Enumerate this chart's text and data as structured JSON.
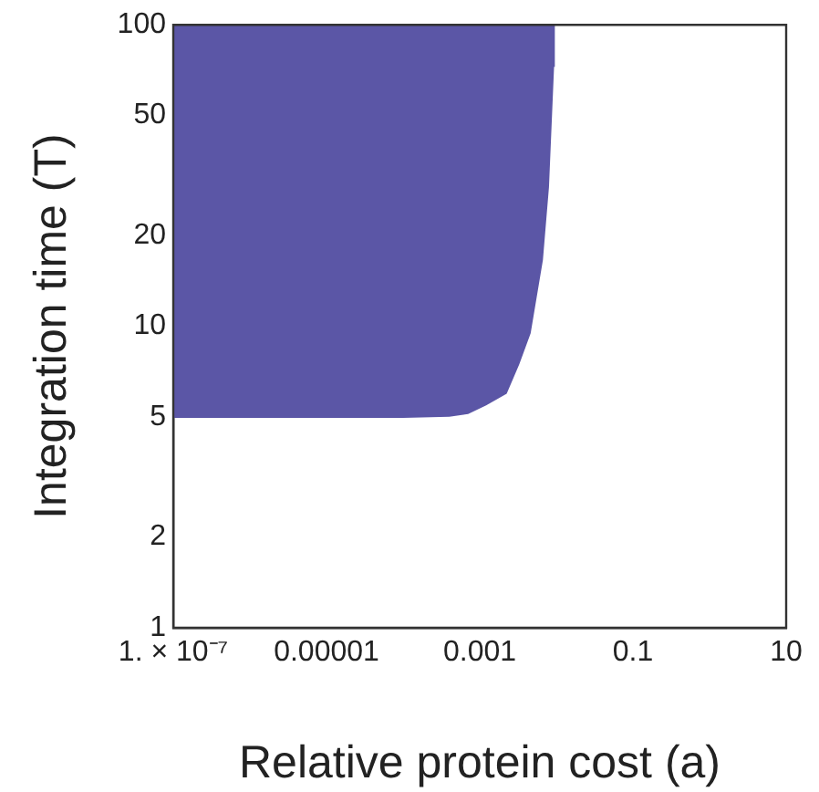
{
  "chart_data": {
    "type": "area",
    "xlabel": "Relative protein cost (a)",
    "ylabel": "Integration time (T)",
    "log": "xy",
    "xlim": [
      1e-07,
      10
    ],
    "xticks": [
      {
        "value": 1e-07,
        "label": "1. × 10⁻⁷"
      },
      {
        "value": 1e-05,
        "label": "0.00001"
      },
      0.001,
      0.1,
      10
    ],
    "ylim": [
      1,
      100
    ],
    "yticks": [
      1,
      2,
      5,
      10,
      20,
      50,
      100
    ],
    "grid": false,
    "legend": false,
    "series": [
      {
        "color": "#5b56a6",
        "x": [
          1e-07,
          1e-07,
          0.0001,
          0.0004,
          0.0007,
          0.0012,
          0.0022,
          0.0032,
          0.0045,
          0.0065,
          0.0078,
          0.0091,
          0.0093
        ],
        "values": [
          100,
          5,
          5,
          5.05,
          5.15,
          5.5,
          6,
          7.5,
          9.5,
          16.6,
          29,
          73,
          100
        ]
      }
    ]
  }
}
